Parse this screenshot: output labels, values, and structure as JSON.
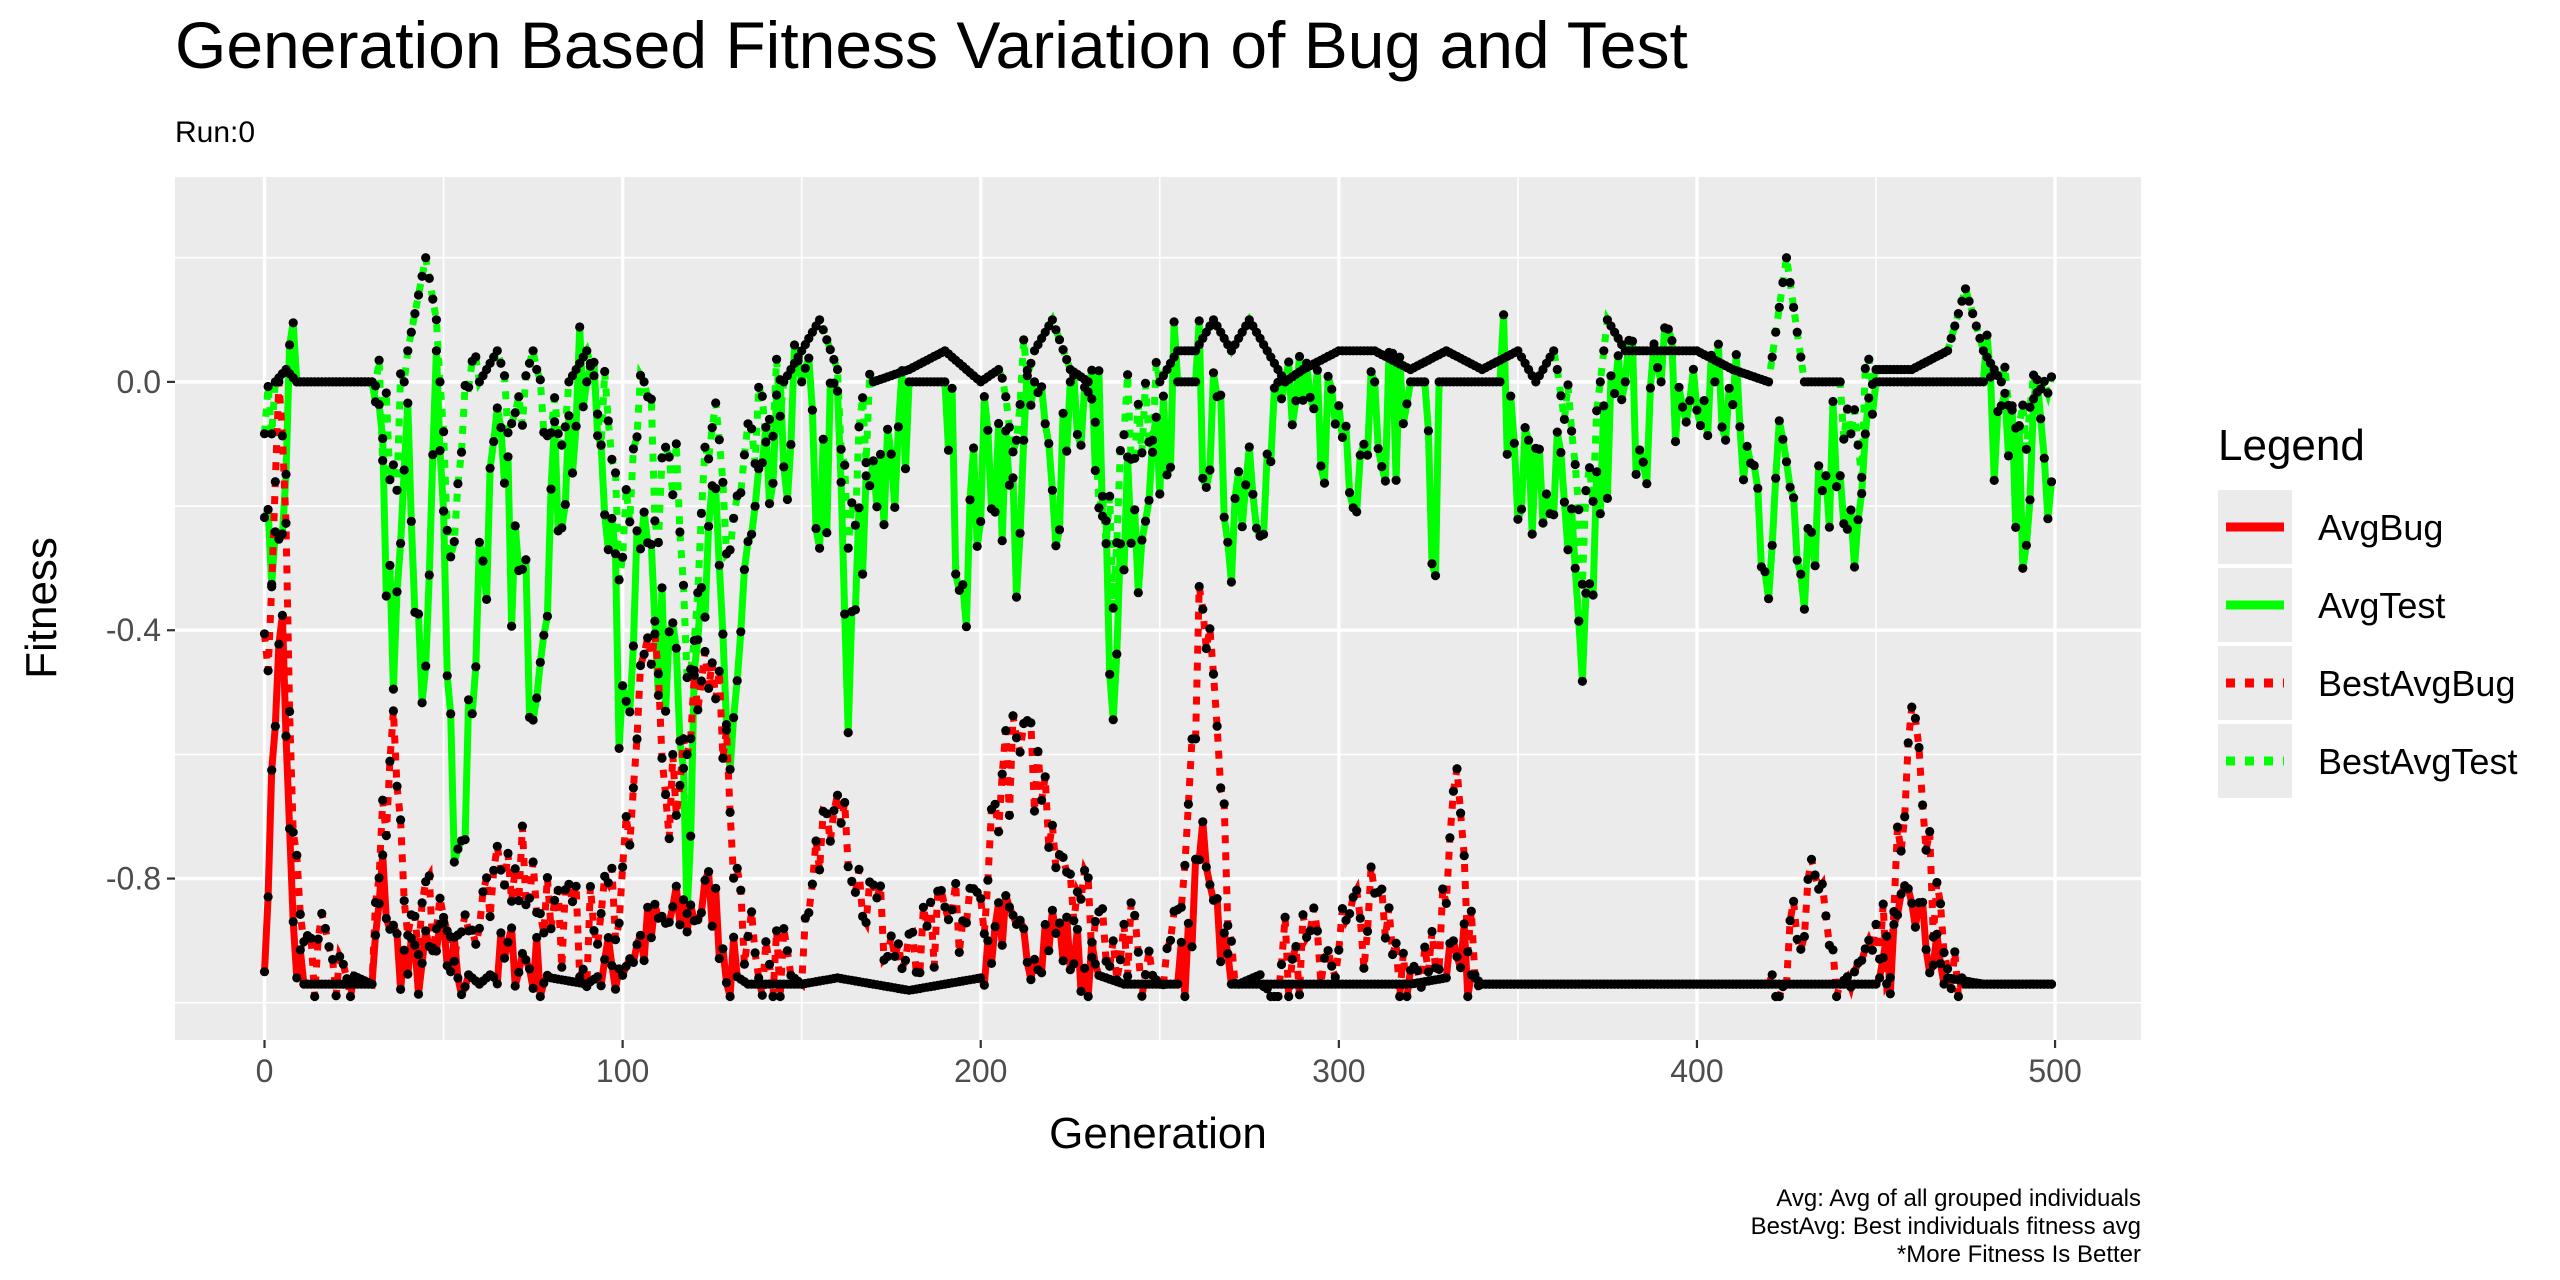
{
  "chart_data": {
    "type": "line",
    "title": "Generation Based Fitness Variation of Bug and Test",
    "subtitle": "Run:0",
    "xlabel": "Generation",
    "ylabel": "Fitness",
    "xlim": [
      -25,
      524
    ],
    "ylim": [
      -1.06,
      0.33
    ],
    "x_ticks": [
      0,
      100,
      200,
      300,
      400,
      500
    ],
    "y_ticks": [
      0.0,
      -0.4,
      -0.8
    ],
    "y_tick_labels": [
      "0.0",
      "-0.4",
      "-0.8"
    ],
    "grid": true,
    "legend": {
      "title": "Legend",
      "placement": "right",
      "entries": [
        {
          "name": "AvgBug",
          "color": "#ff0000",
          "style": "solid"
        },
        {
          "name": "AvgTest",
          "color": "#00ff00",
          "style": "solid"
        },
        {
          "name": "BestAvgBug",
          "color": "#ff0000",
          "style": "dotted"
        },
        {
          "name": "BestAvgTest",
          "color": "#00ff00",
          "style": "dotted"
        }
      ]
    },
    "caption": [
      "Avg: Avg of all grouped individuals",
      "BestAvg: Best individuals fitness avg",
      "*More Fitness Is Better"
    ],
    "series_keypoints": {
      "AvgBug": [
        [
          0,
          -0.89
        ],
        [
          1,
          -0.88
        ],
        [
          2,
          -0.6
        ],
        [
          3,
          -0.52
        ],
        [
          4,
          -0.45
        ],
        [
          5,
          -0.38
        ],
        [
          6,
          -0.55
        ],
        [
          7,
          -0.75
        ],
        [
          8,
          -0.9
        ],
        [
          9,
          -0.96
        ],
        [
          10,
          -0.92
        ],
        [
          11,
          -0.97
        ],
        [
          15,
          -0.97
        ],
        [
          30,
          -0.97
        ],
        [
          33,
          -0.8
        ],
        [
          36,
          -0.9
        ],
        [
          40,
          -0.95
        ],
        [
          50,
          -0.92
        ],
        [
          60,
          -0.97
        ],
        [
          70,
          -0.92
        ],
        [
          80,
          -0.96
        ],
        [
          90,
          -0.97
        ],
        [
          100,
          -0.93
        ],
        [
          110,
          -0.88
        ],
        [
          120,
          -0.85
        ],
        [
          125,
          -0.83
        ],
        [
          130,
          -0.95
        ],
        [
          135,
          -0.97
        ],
        [
          150,
          -0.97
        ],
        [
          160,
          -0.96
        ],
        [
          170,
          -0.97
        ],
        [
          180,
          -0.98
        ],
        [
          190,
          -0.97
        ],
        [
          200,
          -0.96
        ],
        [
          205,
          -0.85
        ],
        [
          210,
          -0.92
        ],
        [
          215,
          -0.9
        ],
        [
          220,
          -0.88
        ],
        [
          230,
          -0.95
        ],
        [
          240,
          -0.97
        ],
        [
          255,
          -0.97
        ],
        [
          258,
          -0.92
        ],
        [
          262,
          -0.73
        ],
        [
          265,
          -0.8
        ],
        [
          268,
          -0.92
        ],
        [
          270,
          -0.97
        ],
        [
          280,
          -0.97
        ],
        [
          300,
          -0.97
        ],
        [
          320,
          -0.97
        ],
        [
          330,
          -0.96
        ],
        [
          333,
          -0.87
        ],
        [
          336,
          -0.95
        ],
        [
          340,
          -0.97
        ],
        [
          400,
          -0.97
        ],
        [
          420,
          -0.97
        ],
        [
          450,
          -0.97
        ],
        [
          455,
          -0.92
        ],
        [
          460,
          -0.83
        ],
        [
          465,
          -0.92
        ],
        [
          470,
          -0.96
        ],
        [
          480,
          -0.97
        ],
        [
          499,
          -0.97
        ]
      ],
      "AvgTest": [
        [
          0,
          -0.25
        ],
        [
          3,
          -0.3
        ],
        [
          6,
          -0.1
        ],
        [
          9,
          0.0
        ],
        [
          10,
          0.0
        ],
        [
          30,
          0.0
        ],
        [
          33,
          -0.2
        ],
        [
          36,
          -0.4
        ],
        [
          40,
          -0.15
        ],
        [
          45,
          -0.5
        ],
        [
          48,
          0.05
        ],
        [
          52,
          -0.6
        ],
        [
          55,
          -0.75
        ],
        [
          60,
          -0.3
        ],
        [
          65,
          -0.15
        ],
        [
          70,
          -0.3
        ],
        [
          75,
          -0.45
        ],
        [
          80,
          -0.2
        ],
        [
          85,
          -0.1
        ],
        [
          90,
          0.0
        ],
        [
          95,
          -0.1
        ],
        [
          100,
          -0.6
        ],
        [
          103,
          -0.35
        ],
        [
          106,
          -0.1
        ],
        [
          110,
          -0.5
        ],
        [
          115,
          -0.3
        ],
        [
          118,
          -0.75
        ],
        [
          122,
          -0.4
        ],
        [
          126,
          -0.25
        ],
        [
          130,
          -0.6
        ],
        [
          135,
          -0.3
        ],
        [
          140,
          -0.2
        ],
        [
          145,
          -0.1
        ],
        [
          150,
          0.0
        ],
        [
          155,
          -0.2
        ],
        [
          160,
          -0.05
        ],
        [
          163,
          -0.55
        ],
        [
          166,
          -0.3
        ],
        [
          170,
          -0.1
        ],
        [
          175,
          -0.2
        ],
        [
          180,
          0.0
        ],
        [
          190,
          0.0
        ],
        [
          195,
          -0.3
        ],
        [
          200,
          -0.15
        ],
        [
          205,
          -0.1
        ],
        [
          210,
          -0.25
        ],
        [
          215,
          0.0
        ],
        [
          220,
          -0.2
        ],
        [
          225,
          0.0
        ],
        [
          230,
          -0.05
        ],
        [
          234,
          -0.1
        ],
        [
          237,
          -0.62
        ],
        [
          240,
          -0.2
        ],
        [
          245,
          -0.35
        ],
        [
          250,
          -0.1
        ],
        [
          255,
          0.0
        ],
        [
          260,
          0.0
        ],
        [
          265,
          -0.1
        ],
        [
          270,
          -0.2
        ],
        [
          275,
          -0.1
        ],
        [
          280,
          -0.15
        ],
        [
          285,
          0.0
        ],
        [
          290,
          -0.1
        ],
        [
          295,
          -0.05
        ],
        [
          300,
          -0.05
        ],
        [
          305,
          -0.1
        ],
        [
          310,
          0.0
        ],
        [
          315,
          -0.05
        ],
        [
          320,
          0.0
        ],
        [
          324,
          0.0
        ],
        [
          326,
          -0.37
        ],
        [
          328,
          0.0
        ],
        [
          340,
          0.0
        ],
        [
          345,
          0.0
        ],
        [
          350,
          -0.1
        ],
        [
          355,
          -0.2
        ],
        [
          360,
          -0.15
        ],
        [
          365,
          -0.3
        ],
        [
          368,
          -0.55
        ],
        [
          372,
          -0.2
        ],
        [
          375,
          -0.1
        ],
        [
          380,
          0.0
        ],
        [
          385,
          -0.05
        ],
        [
          390,
          0.0
        ],
        [
          400,
          -0.05
        ],
        [
          405,
          0.0
        ],
        [
          410,
          -0.05
        ],
        [
          415,
          -0.15
        ],
        [
          420,
          -0.25
        ],
        [
          425,
          -0.1
        ],
        [
          430,
          -0.25
        ],
        [
          435,
          -0.15
        ],
        [
          440,
          -0.1
        ],
        [
          445,
          -0.25
        ],
        [
          450,
          0.0
        ],
        [
          460,
          0.0
        ],
        [
          470,
          0.0
        ],
        [
          475,
          0.0
        ],
        [
          480,
          0.0
        ],
        [
          485,
          -0.1
        ],
        [
          490,
          -0.2
        ],
        [
          495,
          -0.1
        ],
        [
          499,
          -0.17
        ]
      ],
      "BestAvgBug": [
        [
          0,
          -0.45
        ],
        [
          2,
          -0.38
        ],
        [
          4,
          0.0
        ],
        [
          5,
          -0.1
        ],
        [
          7,
          -0.5
        ],
        [
          9,
          -0.8
        ],
        [
          11,
          -0.92
        ],
        [
          30,
          -0.97
        ],
        [
          33,
          -0.75
        ],
        [
          36,
          -0.6
        ],
        [
          40,
          -0.85
        ],
        [
          50,
          -0.85
        ],
        [
          60,
          -0.9
        ],
        [
          70,
          -0.75
        ],
        [
          80,
          -0.85
        ],
        [
          90,
          -0.9
        ],
        [
          100,
          -0.8
        ],
        [
          105,
          -0.5
        ],
        [
          108,
          -0.4
        ],
        [
          112,
          -0.7
        ],
        [
          120,
          -0.55
        ],
        [
          125,
          -0.4
        ],
        [
          130,
          -0.7
        ],
        [
          135,
          -0.9
        ],
        [
          150,
          -0.97
        ],
        [
          155,
          -0.75
        ],
        [
          160,
          -0.6
        ],
        [
          165,
          -0.8
        ],
        [
          175,
          -0.9
        ],
        [
          180,
          -0.95
        ],
        [
          190,
          -0.88
        ],
        [
          200,
          -0.85
        ],
        [
          205,
          -0.65
        ],
        [
          210,
          -0.6
        ],
        [
          215,
          -0.62
        ],
        [
          220,
          -0.7
        ],
        [
          230,
          -0.85
        ],
        [
          240,
          -0.9
        ],
        [
          250,
          -0.97
        ],
        [
          258,
          -0.7
        ],
        [
          262,
          -0.3
        ],
        [
          265,
          -0.5
        ],
        [
          268,
          -0.75
        ],
        [
          272,
          -0.97
        ],
        [
          300,
          -0.9
        ],
        [
          310,
          -0.85
        ],
        [
          320,
          -0.95
        ],
        [
          330,
          -0.85
        ],
        [
          333,
          -0.65
        ],
        [
          336,
          -0.9
        ],
        [
          340,
          -0.97
        ],
        [
          420,
          -0.97
        ],
        [
          430,
          -0.82
        ],
        [
          435,
          -0.88
        ],
        [
          440,
          -0.97
        ],
        [
          455,
          -0.88
        ],
        [
          460,
          -0.45
        ],
        [
          463,
          -0.7
        ],
        [
          468,
          -0.9
        ],
        [
          475,
          -0.97
        ],
        [
          499,
          -0.97
        ]
      ],
      "BestAvgTest": [
        [
          0,
          -0.05
        ],
        [
          3,
          0.0
        ],
        [
          6,
          0.02
        ],
        [
          9,
          0.0
        ],
        [
          30,
          0.0
        ],
        [
          33,
          -0.05
        ],
        [
          36,
          -0.15
        ],
        [
          40,
          0.05
        ],
        [
          45,
          0.2
        ],
        [
          48,
          0.1
        ],
        [
          52,
          -0.3
        ],
        [
          55,
          -0.1
        ],
        [
          60,
          0.0
        ],
        [
          65,
          0.05
        ],
        [
          70,
          -0.05
        ],
        [
          75,
          0.05
        ],
        [
          80,
          -0.1
        ],
        [
          85,
          0.0
        ],
        [
          90,
          0.05
        ],
        [
          95,
          -0.05
        ],
        [
          100,
          -0.3
        ],
        [
          103,
          -0.1
        ],
        [
          106,
          0.0
        ],
        [
          110,
          -0.2
        ],
        [
          115,
          -0.1
        ],
        [
          118,
          -0.5
        ],
        [
          122,
          -0.2
        ],
        [
          126,
          -0.1
        ],
        [
          130,
          -0.3
        ],
        [
          135,
          -0.1
        ],
        [
          140,
          -0.05
        ],
        [
          145,
          0.0
        ],
        [
          150,
          0.05
        ],
        [
          155,
          0.1
        ],
        [
          160,
          0.02
        ],
        [
          163,
          -0.3
        ],
        [
          166,
          -0.1
        ],
        [
          170,
          0.0
        ],
        [
          180,
          0.02
        ],
        [
          190,
          0.05
        ],
        [
          200,
          0.0
        ],
        [
          205,
          0.02
        ],
        [
          210,
          -0.05
        ],
        [
          215,
          0.05
        ],
        [
          220,
          0.1
        ],
        [
          225,
          0.02
        ],
        [
          230,
          0.0
        ],
        [
          237,
          -0.3
        ],
        [
          240,
          -0.05
        ],
        [
          245,
          -0.1
        ],
        [
          250,
          0.0
        ],
        [
          255,
          0.05
        ],
        [
          260,
          0.05
        ],
        [
          265,
          0.1
        ],
        [
          270,
          0.05
        ],
        [
          275,
          0.1
        ],
        [
          280,
          0.05
        ],
        [
          285,
          0.0
        ],
        [
          290,
          0.02
        ],
        [
          300,
          0.05
        ],
        [
          310,
          0.05
        ],
        [
          320,
          0.02
        ],
        [
          330,
          0.05
        ],
        [
          340,
          0.02
        ],
        [
          350,
          0.05
        ],
        [
          355,
          0.0
        ],
        [
          360,
          0.05
        ],
        [
          365,
          -0.1
        ],
        [
          368,
          -0.3
        ],
        [
          372,
          -0.05
        ],
        [
          375,
          0.1
        ],
        [
          380,
          0.05
        ],
        [
          390,
          0.05
        ],
        [
          400,
          0.05
        ],
        [
          410,
          0.02
        ],
        [
          420,
          0.0
        ],
        [
          425,
          0.2
        ],
        [
          430,
          0.0
        ],
        [
          435,
          0.0
        ],
        [
          440,
          0.0
        ],
        [
          445,
          -0.1
        ],
        [
          450,
          0.02
        ],
        [
          460,
          0.02
        ],
        [
          470,
          0.05
        ],
        [
          475,
          0.15
        ],
        [
          480,
          0.05
        ],
        [
          485,
          0.0
        ],
        [
          490,
          -0.1
        ],
        [
          495,
          -0.05
        ],
        [
          499,
          -0.05
        ]
      ]
    }
  }
}
